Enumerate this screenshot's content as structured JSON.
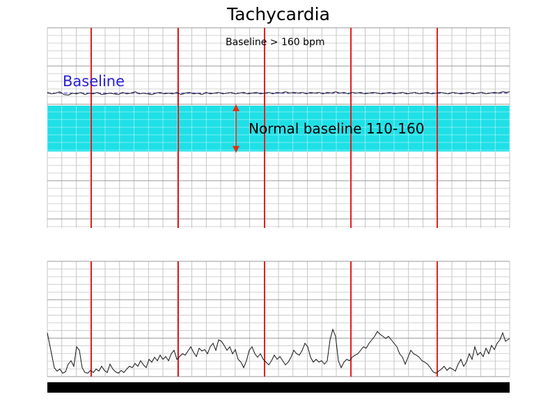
{
  "title": "Tachycardia",
  "top_strip": {
    "subtitle": "Baseline > 160 bpm",
    "baseline_label": "Baseline",
    "normal_label": "Normal baseline 110-160",
    "baseline_color": "#2a1fd6",
    "band_color": "#1ee0e6",
    "arrow_color": "#e0301e",
    "trace": [
      [
        0,
        -1
      ],
      [
        6,
        1
      ],
      [
        12,
        0
      ],
      [
        18,
        -2
      ],
      [
        24,
        2
      ],
      [
        30,
        3
      ],
      [
        36,
        0
      ],
      [
        42,
        1
      ],
      [
        48,
        -1
      ],
      [
        54,
        2
      ],
      [
        60,
        0
      ],
      [
        66,
        1
      ],
      [
        72,
        -1
      ],
      [
        78,
        2
      ],
      [
        84,
        1
      ],
      [
        90,
        0
      ],
      [
        96,
        1
      ],
      [
        102,
        2
      ],
      [
        108,
        -1
      ],
      [
        114,
        1
      ],
      [
        120,
        0
      ],
      [
        126,
        -2
      ],
      [
        132,
        1
      ],
      [
        138,
        0
      ],
      [
        144,
        1
      ],
      [
        150,
        2
      ],
      [
        156,
        0
      ],
      [
        162,
        -1
      ],
      [
        168,
        1
      ],
      [
        174,
        0
      ],
      [
        180,
        1
      ],
      [
        186,
        -1
      ],
      [
        192,
        2
      ],
      [
        198,
        0
      ],
      [
        204,
        -1
      ],
      [
        210,
        1
      ],
      [
        216,
        0
      ],
      [
        222,
        2
      ],
      [
        228,
        -1
      ],
      [
        234,
        1
      ],
      [
        240,
        0
      ],
      [
        246,
        -1
      ],
      [
        252,
        1
      ],
      [
        258,
        0
      ],
      [
        264,
        -1
      ],
      [
        270,
        1
      ],
      [
        276,
        0
      ],
      [
        282,
        -1
      ],
      [
        288,
        1
      ],
      [
        294,
        0
      ],
      [
        300,
        -1
      ],
      [
        306,
        1
      ],
      [
        312,
        0
      ],
      [
        318,
        -1
      ],
      [
        324,
        1
      ],
      [
        330,
        -1
      ],
      [
        336,
        0
      ],
      [
        342,
        -2
      ],
      [
        348,
        0
      ],
      [
        354,
        -1
      ],
      [
        360,
        0
      ],
      [
        366,
        -1
      ],
      [
        372,
        1
      ],
      [
        378,
        -1
      ],
      [
        384,
        0
      ],
      [
        390,
        -1
      ],
      [
        396,
        1
      ],
      [
        402,
        -1
      ],
      [
        408,
        0
      ],
      [
        414,
        -2
      ],
      [
        420,
        0
      ],
      [
        426,
        -1
      ],
      [
        432,
        1
      ],
      [
        438,
        -1
      ],
      [
        444,
        0
      ],
      [
        450,
        -1
      ],
      [
        456,
        1
      ],
      [
        462,
        0
      ],
      [
        468,
        -1
      ],
      [
        474,
        0
      ],
      [
        480,
        1
      ],
      [
        486,
        0
      ],
      [
        492,
        -1
      ],
      [
        498,
        1
      ],
      [
        504,
        0
      ],
      [
        510,
        -1
      ],
      [
        516,
        1
      ],
      [
        522,
        0
      ],
      [
        528,
        -1
      ],
      [
        534,
        1
      ],
      [
        540,
        0
      ],
      [
        546,
        -1
      ],
      [
        552,
        1
      ],
      [
        558,
        0
      ],
      [
        564,
        -1
      ],
      [
        570,
        0
      ],
      [
        576,
        1
      ],
      [
        582,
        -1
      ],
      [
        588,
        0
      ],
      [
        594,
        1
      ],
      [
        600,
        0
      ],
      [
        606,
        -1
      ],
      [
        612,
        1
      ],
      [
        618,
        0
      ],
      [
        624,
        -1
      ],
      [
        630,
        1
      ],
      [
        636,
        0
      ],
      [
        642,
        -1
      ],
      [
        648,
        0
      ],
      [
        654,
        -2
      ],
      [
        660,
        -1
      ],
      [
        664,
        -2
      ]
    ]
  },
  "bottom_strip": {
    "trace": [
      [
        0,
        60
      ],
      [
        3,
        45
      ],
      [
        6,
        30
      ],
      [
        10,
        10
      ],
      [
        14,
        5
      ],
      [
        18,
        8
      ],
      [
        22,
        2
      ],
      [
        26,
        4
      ],
      [
        30,
        15
      ],
      [
        34,
        20
      ],
      [
        38,
        12
      ],
      [
        42,
        40
      ],
      [
        46,
        35
      ],
      [
        50,
        10
      ],
      [
        54,
        3
      ],
      [
        58,
        2
      ],
      [
        62,
        6
      ],
      [
        66,
        3
      ],
      [
        70,
        8
      ],
      [
        74,
        5
      ],
      [
        78,
        12
      ],
      [
        82,
        6
      ],
      [
        86,
        3
      ],
      [
        90,
        15
      ],
      [
        94,
        8
      ],
      [
        98,
        4
      ],
      [
        102,
        2
      ],
      [
        106,
        6
      ],
      [
        110,
        3
      ],
      [
        114,
        8
      ],
      [
        118,
        12
      ],
      [
        122,
        10
      ],
      [
        126,
        16
      ],
      [
        130,
        12
      ],
      [
        134,
        20
      ],
      [
        138,
        14
      ],
      [
        142,
        10
      ],
      [
        146,
        22
      ],
      [
        150,
        18
      ],
      [
        154,
        25
      ],
      [
        158,
        20
      ],
      [
        162,
        28
      ],
      [
        166,
        22
      ],
      [
        170,
        26
      ],
      [
        174,
        20
      ],
      [
        178,
        30
      ],
      [
        182,
        35
      ],
      [
        186,
        22
      ],
      [
        190,
        26
      ],
      [
        194,
        30
      ],
      [
        198,
        28
      ],
      [
        202,
        34
      ],
      [
        206,
        40
      ],
      [
        210,
        32
      ],
      [
        214,
        26
      ],
      [
        218,
        38
      ],
      [
        222,
        34
      ],
      [
        226,
        36
      ],
      [
        230,
        30
      ],
      [
        234,
        40
      ],
      [
        238,
        45
      ],
      [
        242,
        35
      ],
      [
        246,
        50
      ],
      [
        250,
        48
      ],
      [
        254,
        42
      ],
      [
        258,
        35
      ],
      [
        262,
        40
      ],
      [
        266,
        30
      ],
      [
        270,
        36
      ],
      [
        274,
        22
      ],
      [
        278,
        18
      ],
      [
        282,
        10
      ],
      [
        286,
        20
      ],
      [
        290,
        35
      ],
      [
        294,
        40
      ],
      [
        298,
        30
      ],
      [
        302,
        25
      ],
      [
        306,
        30
      ],
      [
        310,
        22
      ],
      [
        314,
        18
      ],
      [
        318,
        14
      ],
      [
        322,
        20
      ],
      [
        326,
        28
      ],
      [
        330,
        22
      ],
      [
        334,
        26
      ],
      [
        338,
        20
      ],
      [
        342,
        14
      ],
      [
        346,
        18
      ],
      [
        350,
        25
      ],
      [
        354,
        35
      ],
      [
        358,
        30
      ],
      [
        362,
        28
      ],
      [
        366,
        35
      ],
      [
        370,
        45
      ],
      [
        374,
        40
      ],
      [
        378,
        25
      ],
      [
        382,
        18
      ],
      [
        386,
        22
      ],
      [
        390,
        18
      ],
      [
        394,
        20
      ],
      [
        398,
        15
      ],
      [
        402,
        20
      ],
      [
        406,
        50
      ],
      [
        410,
        65
      ],
      [
        414,
        55
      ],
      [
        418,
        20
      ],
      [
        422,
        10
      ],
      [
        426,
        18
      ],
      [
        430,
        22
      ],
      [
        434,
        20
      ],
      [
        438,
        25
      ],
      [
        442,
        28
      ],
      [
        446,
        30
      ],
      [
        450,
        35
      ],
      [
        454,
        40
      ],
      [
        458,
        38
      ],
      [
        462,
        45
      ],
      [
        466,
        50
      ],
      [
        470,
        55
      ],
      [
        474,
        62
      ],
      [
        478,
        58
      ],
      [
        482,
        55
      ],
      [
        486,
        52
      ],
      [
        490,
        55
      ],
      [
        494,
        50
      ],
      [
        498,
        45
      ],
      [
        502,
        40
      ],
      [
        506,
        30
      ],
      [
        510,
        25
      ],
      [
        514,
        15
      ],
      [
        518,
        25
      ],
      [
        522,
        35
      ],
      [
        526,
        30
      ],
      [
        530,
        28
      ],
      [
        534,
        25
      ],
      [
        538,
        20
      ],
      [
        542,
        18
      ],
      [
        546,
        15
      ],
      [
        550,
        10
      ],
      [
        554,
        4
      ],
      [
        558,
        2
      ],
      [
        562,
        5
      ],
      [
        566,
        8
      ],
      [
        570,
        12
      ],
      [
        574,
        6
      ],
      [
        578,
        10
      ],
      [
        582,
        8
      ],
      [
        586,
        5
      ],
      [
        590,
        15
      ],
      [
        594,
        22
      ],
      [
        598,
        12
      ],
      [
        602,
        18
      ],
      [
        606,
        30
      ],
      [
        610,
        22
      ],
      [
        614,
        40
      ],
      [
        618,
        28
      ],
      [
        622,
        32
      ],
      [
        626,
        26
      ],
      [
        630,
        38
      ],
      [
        634,
        30
      ],
      [
        638,
        42
      ],
      [
        642,
        36
      ],
      [
        646,
        45
      ],
      [
        650,
        50
      ],
      [
        654,
        60
      ],
      [
        658,
        48
      ],
      [
        664,
        52
      ]
    ]
  }
}
